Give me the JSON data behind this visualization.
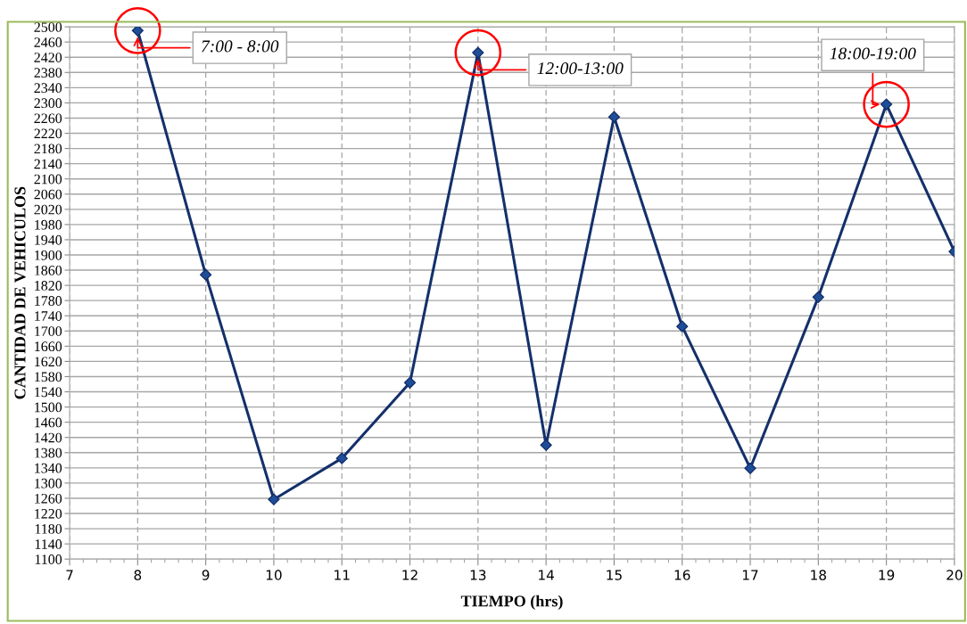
{
  "chart_data": {
    "type": "line",
    "xlabel": "TIEMPO (hrs)",
    "ylabel": "CANTIDAD DE VEHICULOS",
    "x": [
      8,
      9,
      10,
      11,
      12,
      13,
      14,
      15,
      16,
      17,
      18,
      19,
      20
    ],
    "series": [
      {
        "color": "#14306b",
        "values": [
          2490,
          1848,
          1257,
          1365,
          1564,
          2432,
          1400,
          2263,
          1712,
          1339,
          1789,
          2296,
          1909
        ]
      }
    ],
    "xlim": [
      7,
      20
    ],
    "xticks": [
      7,
      8,
      9,
      10,
      11,
      12,
      13,
      14,
      15,
      16,
      17,
      18,
      19,
      20
    ],
    "ylim": [
      1100,
      2500
    ],
    "yticks": [
      1100,
      1140,
      1180,
      1220,
      1260,
      1300,
      1340,
      1380,
      1420,
      1460,
      1500,
      1540,
      1580,
      1620,
      1660,
      1700,
      1740,
      1780,
      1820,
      1860,
      1900,
      1940,
      1980,
      2020,
      2060,
      2100,
      2140,
      2180,
      2220,
      2260,
      2300,
      2340,
      2380,
      2420,
      2460,
      2500
    ],
    "grid": true,
    "marker": "diamond",
    "line_style": "solid",
    "annotations": [
      {
        "text": "7:00 - 8:00",
        "x": 8,
        "y": 2490
      },
      {
        "text": "12:00-13:00",
        "x": 13,
        "y": 2432
      },
      {
        "text": "18:00-19:00",
        "x": 19,
        "y": 2296
      }
    ]
  }
}
